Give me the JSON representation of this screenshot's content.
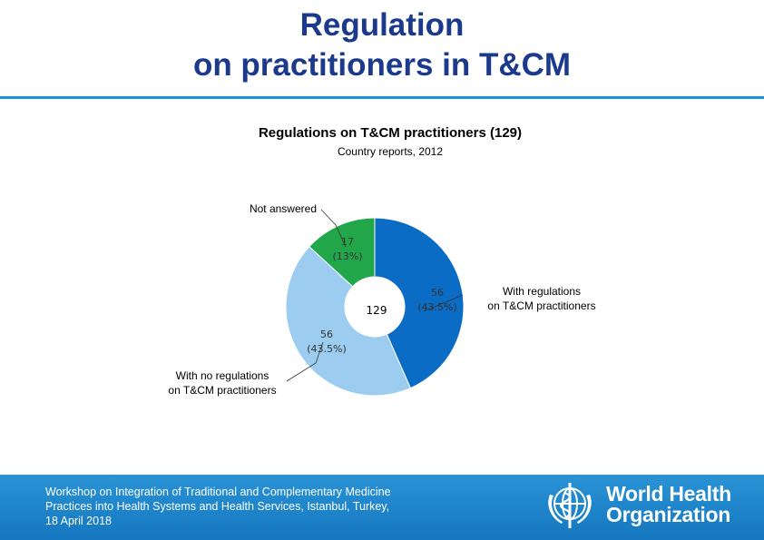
{
  "slide": {
    "title_line1": "Regulation",
    "title_line2": "on practitioners in T&CM"
  },
  "chart_data": {
    "type": "pie",
    "title": "Regulations on T&CM practitioners (129)",
    "subtitle": "Country reports, 2012",
    "center_label": "129",
    "slices": [
      {
        "name": "With regulations on T&CM practitioners",
        "label_lines": [
          "With regulations",
          "on T&CM practitioners"
        ],
        "value": 56,
        "value_label": "56",
        "percent_label": "(43.5%)",
        "color": "#0a6cc4"
      },
      {
        "name": "With no regulations on T&CM practitioners",
        "label_lines": [
          "With no regulations",
          "on T&CM practitioners"
        ],
        "value": 56,
        "value_label": "56",
        "percent_label": "(43.5%)",
        "color": "#9ccdf0"
      },
      {
        "name": "Not answered",
        "label_lines": [
          "Not answered"
        ],
        "value": 17,
        "value_label": "17",
        "percent_label": "(13%)",
        "color": "#21a64a"
      }
    ]
  },
  "footer": {
    "line1": "Workshop on Integration of Traditional and Complementary Medicine",
    "line2": "Practices into Health Systems and Health Services, Istanbul, Turkey,",
    "line3": "18 April 2018",
    "org_line1": "World Health",
    "org_line2": "Organization",
    "background_color": "#1a82c8"
  }
}
